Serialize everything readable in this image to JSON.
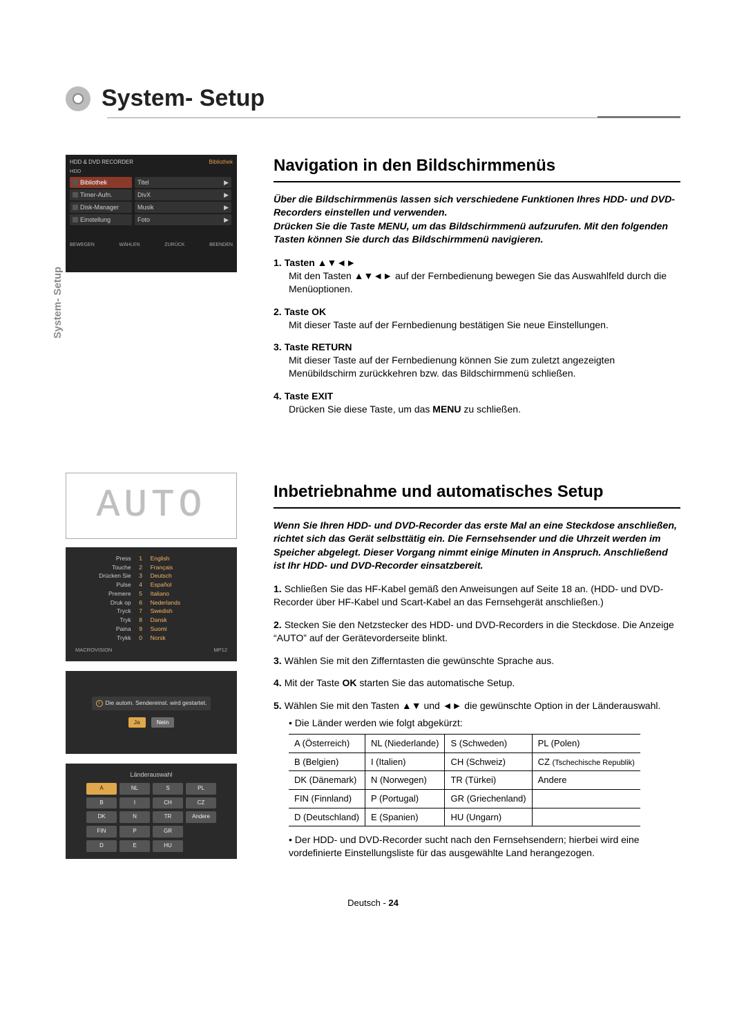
{
  "page": {
    "title": "System- Setup",
    "sideTab": "System- Setup",
    "footerLang": "Deutsch",
    "footerDash": " - ",
    "footerPage": "24"
  },
  "osdMenu": {
    "header": "HDD & DVD RECORDER",
    "headerRight": "Bibliothek",
    "sub": "HDD",
    "leftItems": [
      "Bibliothek",
      "Timer-Aufn.",
      "Disk-Manager",
      "Einstellung"
    ],
    "rightItems": [
      "Titel",
      "DivX",
      "Musik",
      "Foto"
    ],
    "footer": [
      "BEWEGEN",
      "WÄHLEN",
      "ZURÜCK",
      "BEENDEN"
    ]
  },
  "section1": {
    "heading": "Navigation in den Bildschirmmenüs",
    "intro": "Über die Bildschirmmenüs lassen sich verschiedene Funktionen Ihres HDD- und DVD-Recorders einstellen und verwenden.\nDrücken Sie die Taste MENU, um das Bildschirmmenü aufzurufen. Mit den folgenden Tasten können Sie durch das Bildschirmmenü navigieren.",
    "list": [
      {
        "n": "1.",
        "t": "Tasten ▲▼◄►",
        "d": "Mit den Tasten ▲▼◄► auf der Fernbedienung bewegen Sie das Auswahlfeld durch die Menüoptionen."
      },
      {
        "n": "2.",
        "t": "Taste OK",
        "d": "Mit dieser Taste auf der Fernbedienung bestätigen Sie neue Einstellungen."
      },
      {
        "n": "3.",
        "t": "Taste RETURN",
        "d": "Mit dieser Taste auf der Fernbedienung können Sie zum zuletzt angezeigten Menübildschirm zurückkehren bzw. das Bildschirmmenü schließen."
      },
      {
        "n": "4.",
        "t": "Taste EXIT",
        "d": "Drücken Sie diese Taste, um das MENU zu schließen."
      }
    ]
  },
  "segDisplay": "AUTO",
  "osdLang": {
    "rows": [
      [
        "Press",
        "1",
        "English"
      ],
      [
        "Touche",
        "2",
        "Français"
      ],
      [
        "Drücken Sie",
        "3",
        "Deutsch"
      ],
      [
        "Pulse",
        "4",
        "Español"
      ],
      [
        "Premere",
        "5",
        "Italiano"
      ],
      [
        "Druk op",
        "6",
        "Nederlands"
      ],
      [
        "Tryck",
        "7",
        "Swedish"
      ],
      [
        "Tryk",
        "8",
        "Dansk"
      ],
      [
        "Paina",
        "9",
        "Suomi"
      ],
      [
        "Trykk",
        "0",
        "Norsk"
      ]
    ],
    "footerL": "MACROVISION",
    "footerR": "MP12"
  },
  "osdConfirm": {
    "msg": "Die autom. Sendereinst. wird gestartet.",
    "yes": "Ja",
    "no": "Nein"
  },
  "osdCountry": {
    "title": "Länderauswahl",
    "cells": [
      "A",
      "NL",
      "S",
      "PL",
      "B",
      "I",
      "CH",
      "CZ",
      "DK",
      "N",
      "TR",
      "Andere",
      "FIN",
      "P",
      "GR",
      "",
      "D",
      "E",
      "HU",
      ""
    ]
  },
  "section2": {
    "heading": "Inbetriebnahme und automatisches Setup",
    "intro": "Wenn Sie Ihren HDD- und DVD-Recorder das erste Mal an eine Steckdose anschließen, richtet sich das Gerät selbsttätig ein. Die Fernsehsender und die Uhrzeit werden im Speicher abgelegt. Dieser Vorgang nimmt einige Minuten in Anspruch. Anschließend ist Ihr HDD- und DVD-Recorder einsatzbereit.",
    "steps": [
      {
        "n": "1.",
        "d": "Schließen Sie das HF-Kabel gemäß den Anweisungen auf Seite 18 an. (HDD- und DVD-Recorder über HF-Kabel und Scart-Kabel an das Fernsehgerät anschließen.)"
      },
      {
        "n": "2.",
        "d": "Stecken Sie den Netzstecker des HDD- und DVD-Recorders in die Steckdose. Die Anzeige “AUTO” auf der Gerätevorderseite blinkt."
      },
      {
        "n": "3.",
        "d": "Wählen Sie mit den Zifferntasten die gewünschte Sprache aus."
      },
      {
        "n": "4.",
        "d": "Mit der Taste OK starten Sie das automatische Setup."
      },
      {
        "n": "5.",
        "d": "Wählen Sie mit den Tasten ▲▼ und ◄► die gewünschte Option in der Länderauswahl."
      }
    ],
    "bullet1": "Die Länder werden wie folgt abgekürzt:",
    "countryTable": [
      [
        "A (Österreich)",
        "NL (Niederlande)",
        "S (Schweden)",
        "PL (Polen)"
      ],
      [
        "B (Belgien)",
        "I (Italien)",
        "CH (Schweiz)",
        "CZ (Tschechische Republik)"
      ],
      [
        "DK (Dänemark)",
        "N (Norwegen)",
        "TR (Türkei)",
        "Andere"
      ],
      [
        "FIN (Finnland)",
        "P (Portugal)",
        "GR (Griechenland)",
        ""
      ],
      [
        "D (Deutschland)",
        "E (Spanien)",
        "HU (Ungarn)",
        ""
      ]
    ],
    "bullet2": "Der HDD- und DVD-Recorder sucht nach den Fernsehsendern; hierbei wird eine vordefinierte Einstellungsliste für das ausgewählte Land herangezogen."
  }
}
